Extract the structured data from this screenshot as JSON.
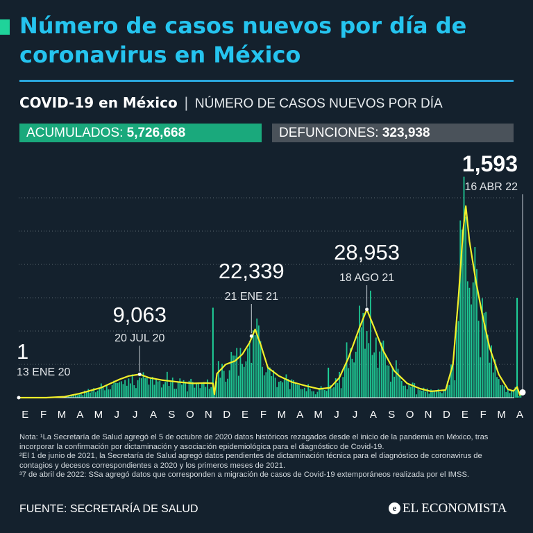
{
  "title": "Número de casos nuevos por día de coronavirus en México",
  "subtitle": {
    "strong": "COVID-19 en México",
    "separator": "|",
    "light": "NÚMERO DE CASOS NUEVOS POR DÍA"
  },
  "stats": {
    "acumulados_label": "ACUMULADOS:",
    "acumulados_value": "5,726,668",
    "defunciones_label": "DEFUNCIONES:",
    "defunciones_value": "323,938"
  },
  "colors": {
    "title": "#25c4ef",
    "bars": "#1fd39a",
    "line": "#f2ef2a",
    "acumulados_bg": "#1aa97c",
    "defunciones_bg": "#4a525a",
    "background": "#14212d"
  },
  "chart_data": {
    "type": "bar",
    "title": "NÚMERO DE CASOS NUEVOS POR DÍA",
    "overlay": "line (moving average)",
    "x_tick_labels": [
      "E",
      "F",
      "M",
      "A",
      "M",
      "J",
      "J",
      "A",
      "S",
      "O",
      "N",
      "D",
      "E",
      "F",
      "M",
      "A",
      "M",
      "J",
      "J",
      "A",
      "S",
      "O",
      "N",
      "D",
      "E",
      "F",
      "M",
      "A"
    ],
    "x_range_months": [
      0,
      27.5
    ],
    "y_range": [
      0,
      60000
    ],
    "grid": "horizontal dotted",
    "average_curve": [
      {
        "m": 0.0,
        "v": 0
      },
      {
        "m": 1.5,
        "v": 0
      },
      {
        "m": 2.5,
        "v": 300
      },
      {
        "m": 3.3,
        "v": 1200
      },
      {
        "m": 4.5,
        "v": 3000
      },
      {
        "m": 5.5,
        "v": 5500
      },
      {
        "m": 6.0,
        "v": 6500
      },
      {
        "m": 6.6,
        "v": 7000
      },
      {
        "m": 7.1,
        "v": 6000
      },
      {
        "m": 7.8,
        "v": 5300
      },
      {
        "m": 8.7,
        "v": 4700
      },
      {
        "m": 9.5,
        "v": 4300
      },
      {
        "m": 10.2,
        "v": 4400
      },
      {
        "m": 10.6,
        "v": 4300
      },
      {
        "m": 10.68,
        "v": 1000
      },
      {
        "m": 10.82,
        "v": 7200
      },
      {
        "m": 11.3,
        "v": 10000
      },
      {
        "m": 11.8,
        "v": 11000
      },
      {
        "m": 12.2,
        "v": 13000
      },
      {
        "m": 12.6,
        "v": 16500
      },
      {
        "m": 12.9,
        "v": 20500
      },
      {
        "m": 13.2,
        "v": 16000
      },
      {
        "m": 13.6,
        "v": 9000
      },
      {
        "m": 14.2,
        "v": 6500
      },
      {
        "m": 14.9,
        "v": 4700
      },
      {
        "m": 15.7,
        "v": 3500
      },
      {
        "m": 16.4,
        "v": 2600
      },
      {
        "m": 17.0,
        "v": 3000
      },
      {
        "m": 17.5,
        "v": 6000
      },
      {
        "m": 18.0,
        "v": 12000
      },
      {
        "m": 18.6,
        "v": 21000
      },
      {
        "m": 19.0,
        "v": 26500
      },
      {
        "m": 19.4,
        "v": 21000
      },
      {
        "m": 19.9,
        "v": 14000
      },
      {
        "m": 20.5,
        "v": 8000
      },
      {
        "m": 21.2,
        "v": 4300
      },
      {
        "m": 21.9,
        "v": 2700
      },
      {
        "m": 22.5,
        "v": 1900
      },
      {
        "m": 23.3,
        "v": 2300
      },
      {
        "m": 23.7,
        "v": 10000
      },
      {
        "m": 24.0,
        "v": 30000
      },
      {
        "m": 24.25,
        "v": 50000
      },
      {
        "m": 24.4,
        "v": 57500
      },
      {
        "m": 24.6,
        "v": 47000
      },
      {
        "m": 24.95,
        "v": 35000
      },
      {
        "m": 25.3,
        "v": 25000
      },
      {
        "m": 25.7,
        "v": 15000
      },
      {
        "m": 26.2,
        "v": 7000
      },
      {
        "m": 26.7,
        "v": 2500
      },
      {
        "m": 27.0,
        "v": 2000
      },
      {
        "m": 27.2,
        "v": 3200
      },
      {
        "m": 27.35,
        "v": 800
      },
      {
        "m": 27.5,
        "v": 1593
      }
    ],
    "annotations": [
      {
        "value": "1",
        "date": "13 ENE 20",
        "m": 0.0,
        "v": 1
      },
      {
        "value": "9,063",
        "date": "20 JUL 20",
        "m": 6.6,
        "v": 7000
      },
      {
        "value": "22,339",
        "date": "21 ENE 21",
        "m": 12.7,
        "v": 18500
      },
      {
        "value": "28,953",
        "date": "18 AGO 21",
        "m": 19.0,
        "v": 26500
      },
      {
        "value": "1,593",
        "date": "16 ABR 22",
        "m": 27.5,
        "v": 1593
      }
    ]
  },
  "notes": [
    "Nota: ¹La Secretaría de Salud agregó el 5 de octubre de 2020 datos históricos rezagados desde el inicio de la pandemia en México, tras incorporar la confirmación por dictaminación y asociación epidemiológica para el diagnóstico de Covid-19.",
    "²El 1 de junio de 2021, la Secretaría de Salud agregó datos pendientes de dictaminación técnica para el diagnóstico de coronavirus de contagios y decesos correspondientes a 2020 y los primeros meses de 2021.",
    "³7 de abril de 2022: SSa agregó datos que corresponden a migración de casos de Covid-19 extemporáneos realizada por el IMSS."
  ],
  "source": "FUENTE: SECRETARÍA DE SALUD",
  "logo": {
    "mark": "e",
    "text": "EL ECONOMISTA"
  }
}
